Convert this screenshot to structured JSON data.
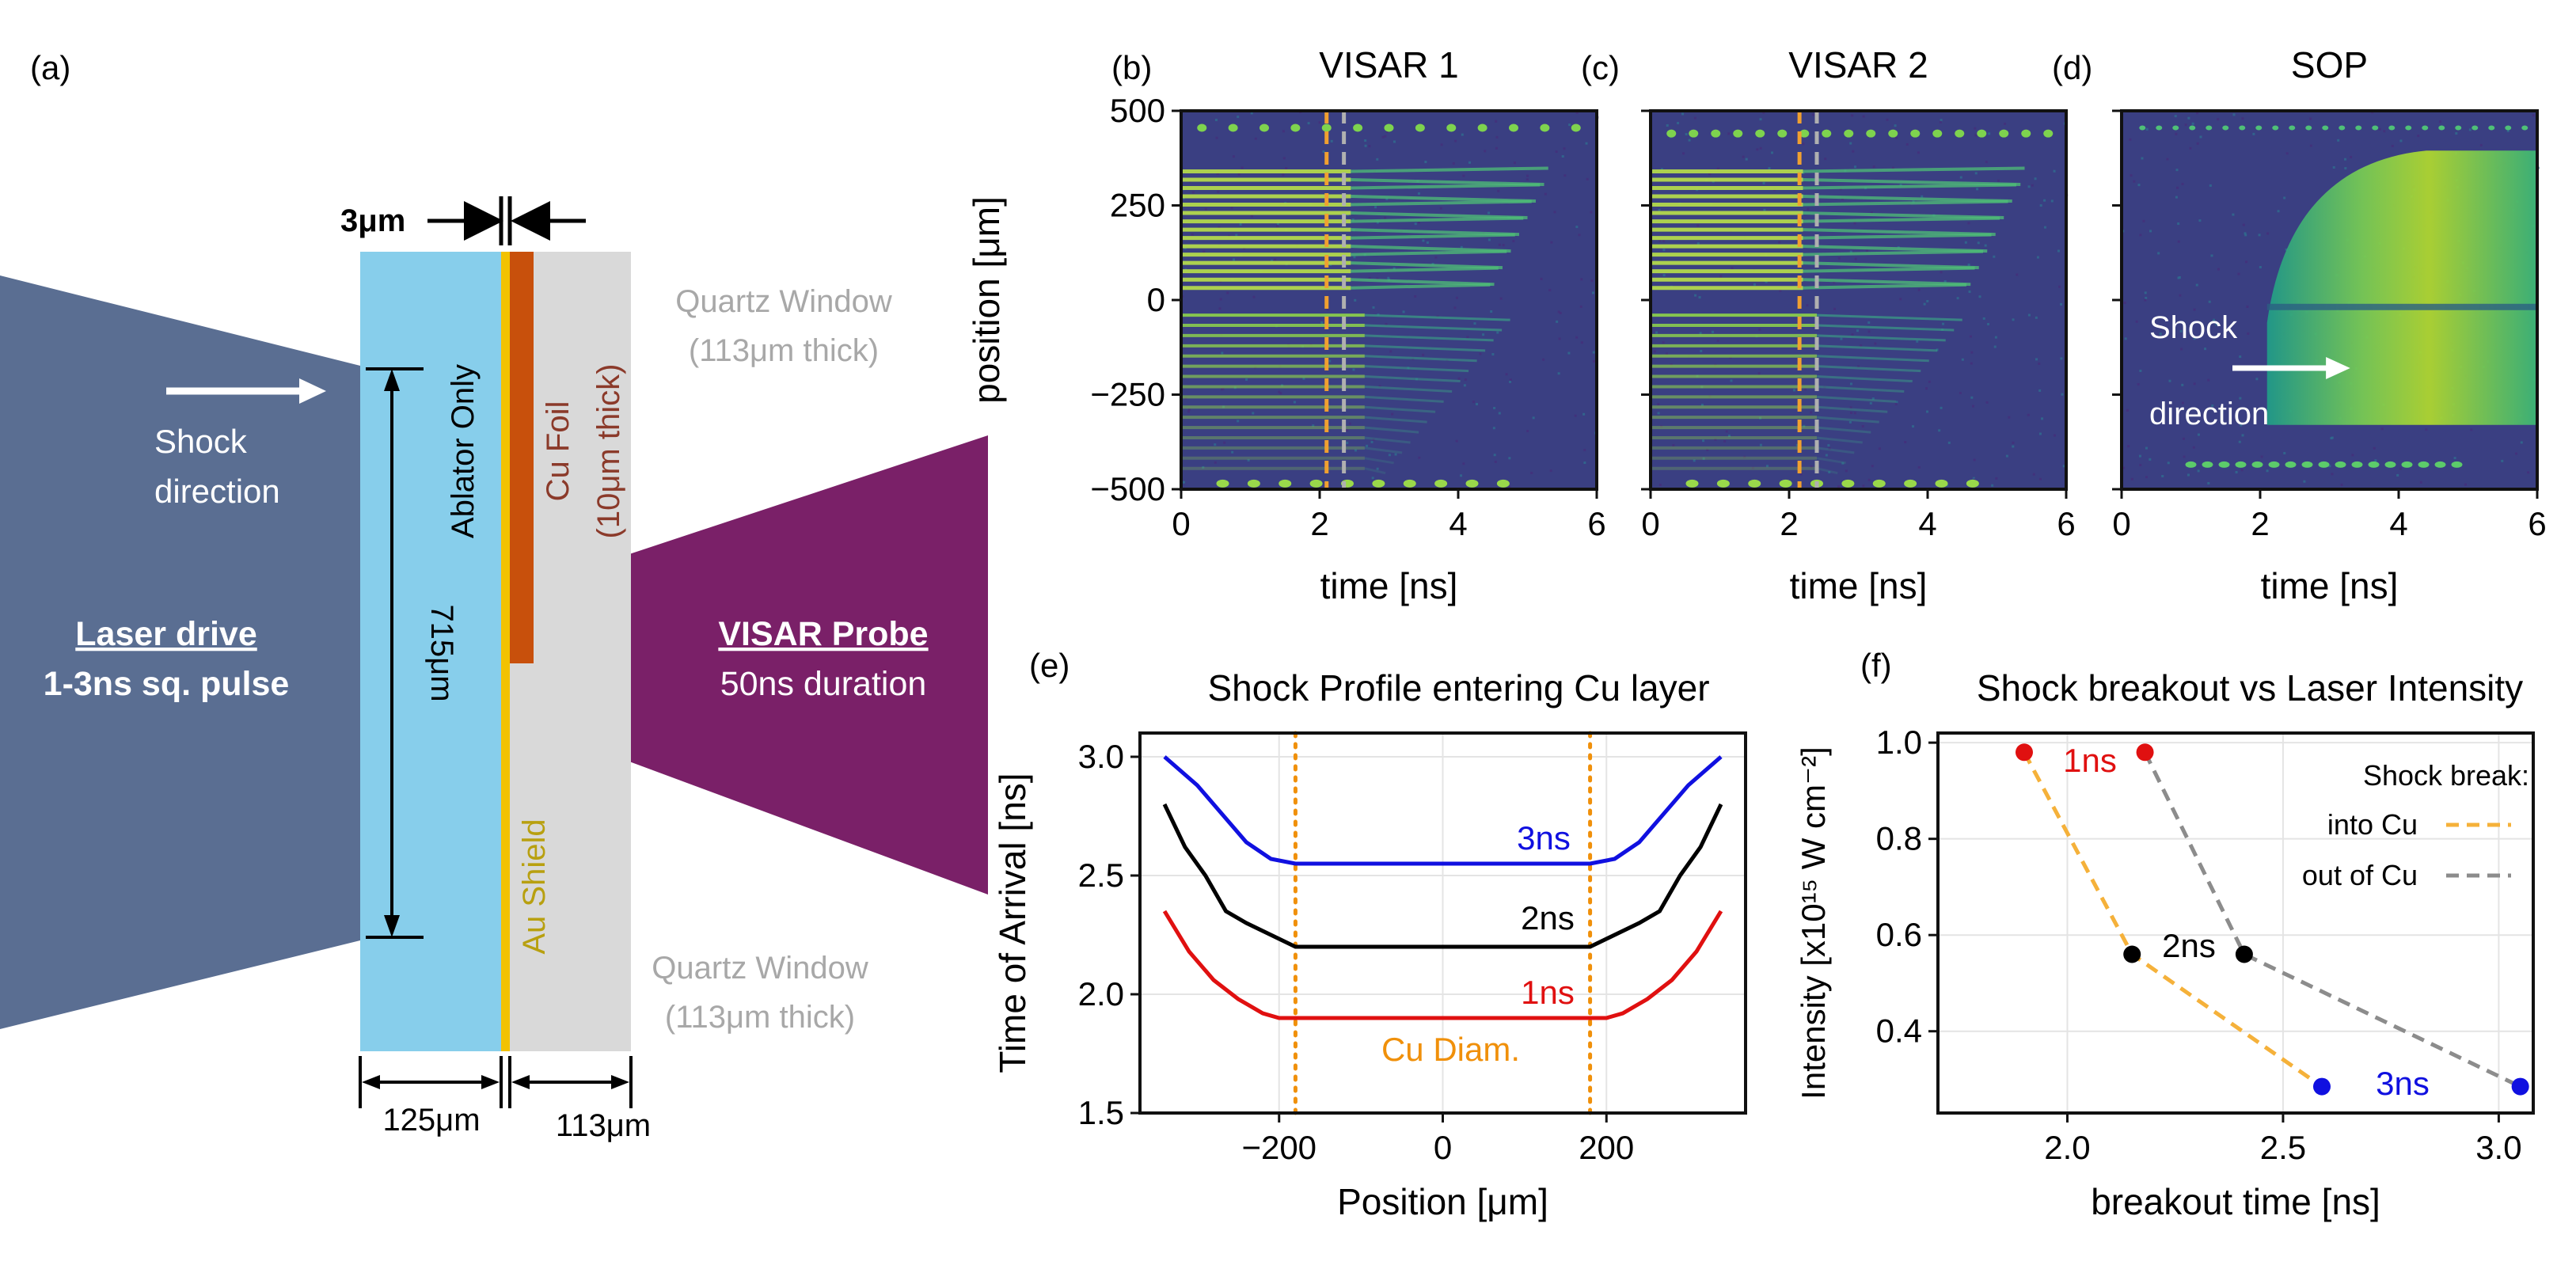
{
  "panel_a": {
    "letter": "(a)",
    "laser_title": "Laser drive",
    "laser_sub": "1-3ns sq. pulse",
    "shock_1": "Shock",
    "shock_2": "direction",
    "visar_title": "VISAR Probe",
    "visar_sub": "50ns duration",
    "thick_top": "3μm",
    "ablator": "Ablator Only",
    "cu_foil_1": "Cu Foil",
    "cu_foil_2": "(10μm thick)",
    "au_shield": "Au Shield",
    "quartz_top_1": "Quartz Window",
    "quartz_top_2": "(113μm thick)",
    "quartz_bot_1": "Quartz Window",
    "quartz_bot_2": "(113μm thick)",
    "dim_715": "715μm",
    "dim_125": "125μm",
    "dim_113": "113μm",
    "colors": {
      "laser": "#5a6e92",
      "visar": "#7a2068",
      "ablator": "#87ceeb",
      "gold": "#f2c200",
      "cu": "#c8500c",
      "quartz": "#d9d9d9",
      "gold_text": "#b8a010",
      "cu_text": "#8b3a2a",
      "quartz_text": "#a8a8a8"
    }
  },
  "streak_panels": [
    {
      "letter": "(b)",
      "title": "VISAR 1",
      "type": "visar1",
      "xlabel": "time [ns]",
      "ylabel": "position [μm]",
      "xticks": [
        "0",
        "2",
        "4",
        "6"
      ],
      "yticks": [
        "500",
        "250",
        "0",
        "−250",
        "−500"
      ],
      "x_range": [
        0,
        6
      ],
      "y_range": [
        -500,
        500
      ],
      "dash_orange_ns": 2.1,
      "dash_grey_ns": 2.35
    },
    {
      "letter": "(c)",
      "title": "VISAR 2",
      "type": "visar2",
      "xlabel": "time [ns]",
      "ylabel": "",
      "xticks": [
        "0",
        "2",
        "4",
        "6"
      ],
      "yticks": [],
      "x_range": [
        0,
        6
      ],
      "y_range": [
        -500,
        500
      ],
      "dash_orange_ns": 2.15,
      "dash_grey_ns": 2.4
    },
    {
      "letter": "(d)",
      "title": "SOP",
      "type": "sop",
      "xlabel": "time [ns]",
      "ylabel": "",
      "xticks": [
        "0",
        "2",
        "4",
        "6"
      ],
      "yticks": [],
      "x_range": [
        0,
        6
      ],
      "y_range": [
        -500,
        500
      ],
      "annot_1": "Shock",
      "annot_2": "direction"
    }
  ],
  "chart_data": [
    {
      "panel": "(e)",
      "type": "line",
      "title": "Shock Profile entering Cu layer",
      "xlabel": "Position [μm]",
      "ylabel": "Time of Arrival [ns]",
      "xlim": [
        -370,
        370
      ],
      "ylim": [
        1.5,
        3.1
      ],
      "xticks": [
        -200,
        0,
        200
      ],
      "xtick_labels": [
        "−200",
        "0",
        "200"
      ],
      "yticks": [
        1.5,
        2.0,
        2.5,
        3.0
      ],
      "ytick_labels": [
        "1.5",
        "2.0",
        "2.5",
        "3.0"
      ],
      "grid": true,
      "series": [
        {
          "name": "3ns",
          "color": "#1010e0",
          "x": [
            -340,
            -300,
            -270,
            -240,
            -210,
            -180,
            0,
            180,
            210,
            240,
            270,
            300,
            340
          ],
          "y": [
            3.0,
            2.88,
            2.76,
            2.64,
            2.57,
            2.55,
            2.55,
            2.55,
            2.57,
            2.64,
            2.76,
            2.88,
            3.0
          ]
        },
        {
          "name": "2ns",
          "color": "#000000",
          "x": [
            -340,
            -315,
            -290,
            -265,
            -240,
            -180,
            0,
            180,
            240,
            265,
            290,
            315,
            340
          ],
          "y": [
            2.8,
            2.62,
            2.5,
            2.35,
            2.3,
            2.2,
            2.2,
            2.2,
            2.3,
            2.35,
            2.5,
            2.62,
            2.8
          ]
        },
        {
          "name": "1ns",
          "color": "#e01010",
          "x": [
            -340,
            -310,
            -280,
            -250,
            -220,
            -200,
            0,
            200,
            220,
            250,
            280,
            310,
            340
          ],
          "y": [
            2.35,
            2.18,
            2.06,
            1.98,
            1.92,
            1.9,
            1.9,
            1.9,
            1.92,
            1.98,
            2.06,
            2.18,
            2.35
          ]
        }
      ],
      "vlines": [
        {
          "x": -180,
          "color": "#f0900a"
        },
        {
          "x": 180,
          "color": "#f0900a"
        }
      ],
      "annotation": "Cu Diam."
    },
    {
      "panel": "(f)",
      "type": "scatter",
      "title": "Shock breakout vs Laser Intensity",
      "xlabel": "breakout time [ns]",
      "ylabel": "Intensity [x10¹⁵ W cm⁻²]",
      "xlim": [
        1.7,
        3.08
      ],
      "ylim": [
        0.23,
        1.02
      ],
      "xticks": [
        2.0,
        2.5,
        3.0
      ],
      "xtick_labels": [
        "2.0",
        "2.5",
        "3.0"
      ],
      "yticks": [
        0.4,
        0.6,
        0.8,
        1.0
      ],
      "ytick_labels": [
        "0.4",
        "0.6",
        "0.8",
        "1.0"
      ],
      "grid": true,
      "legend_title": "Shock break:",
      "legend_position": "top-right",
      "series": [
        {
          "name": "into Cu",
          "color": "#f5b13a",
          "x": [
            1.9,
            2.15,
            2.59
          ],
          "y": [
            0.98,
            0.56,
            0.285
          ]
        },
        {
          "name": "out of Cu",
          "color": "#8c8c8c",
          "x": [
            2.18,
            2.41,
            3.05
          ],
          "y": [
            0.98,
            0.56,
            0.285
          ]
        }
      ],
      "points": [
        {
          "label": "1ns",
          "color": "#e01010",
          "x": [
            1.9,
            2.18
          ],
          "y": [
            0.98,
            0.98
          ]
        },
        {
          "label": "2ns",
          "color": "#000000",
          "x": [
            2.15,
            2.41
          ],
          "y": [
            0.56,
            0.56
          ]
        },
        {
          "label": "3ns",
          "color": "#1010e0",
          "x": [
            2.59,
            3.05
          ],
          "y": [
            0.285,
            0.285
          ]
        }
      ]
    }
  ]
}
